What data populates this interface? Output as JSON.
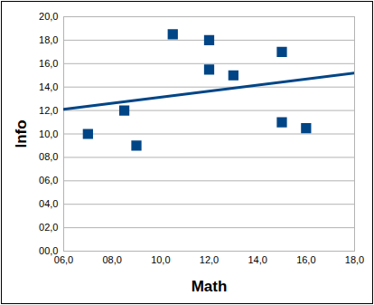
{
  "chart_data": {
    "type": "scatter",
    "x_label": "Math",
    "y_label": "Info",
    "series": [
      {
        "type": "scatter",
        "marker": "square",
        "color": "#004586",
        "x": [
          7,
          8.5,
          9,
          10.5,
          12,
          12,
          13,
          15,
          15,
          16
        ],
        "values": [
          10,
          12,
          9,
          18.5,
          18,
          15.5,
          15,
          17,
          11,
          10.5
        ]
      },
      {
        "type": "line",
        "line_style": "solid",
        "color": "#004586",
        "x": [
          6,
          18
        ],
        "values": [
          12.1,
          15.2
        ]
      }
    ],
    "xlim": [
      6,
      18
    ],
    "xticks": [
      {
        "value": 6,
        "label": "06,0"
      },
      {
        "value": 8,
        "label": "08,0"
      },
      {
        "value": 10,
        "label": "10,0"
      },
      {
        "value": 12,
        "label": "12,0"
      },
      {
        "value": 14,
        "label": "14,0"
      },
      {
        "value": 16,
        "label": "16,0"
      },
      {
        "value": 18,
        "label": "18,0"
      }
    ],
    "ylim": [
      0,
      20
    ],
    "yticks": [
      {
        "value": 0,
        "label": "00,0"
      },
      {
        "value": 2,
        "label": "02,0"
      },
      {
        "value": 4,
        "label": "04,0"
      },
      {
        "value": 6,
        "label": "06,0"
      },
      {
        "value": 8,
        "label": "08,0"
      },
      {
        "value": 10,
        "label": "10,0"
      },
      {
        "value": 12,
        "label": "12,0"
      },
      {
        "value": 14,
        "label": "14,0"
      },
      {
        "value": 16,
        "label": "16,0"
      },
      {
        "value": 18,
        "label": "18,0"
      },
      {
        "value": 20,
        "label": "20,0"
      }
    ],
    "grid": true
  }
}
